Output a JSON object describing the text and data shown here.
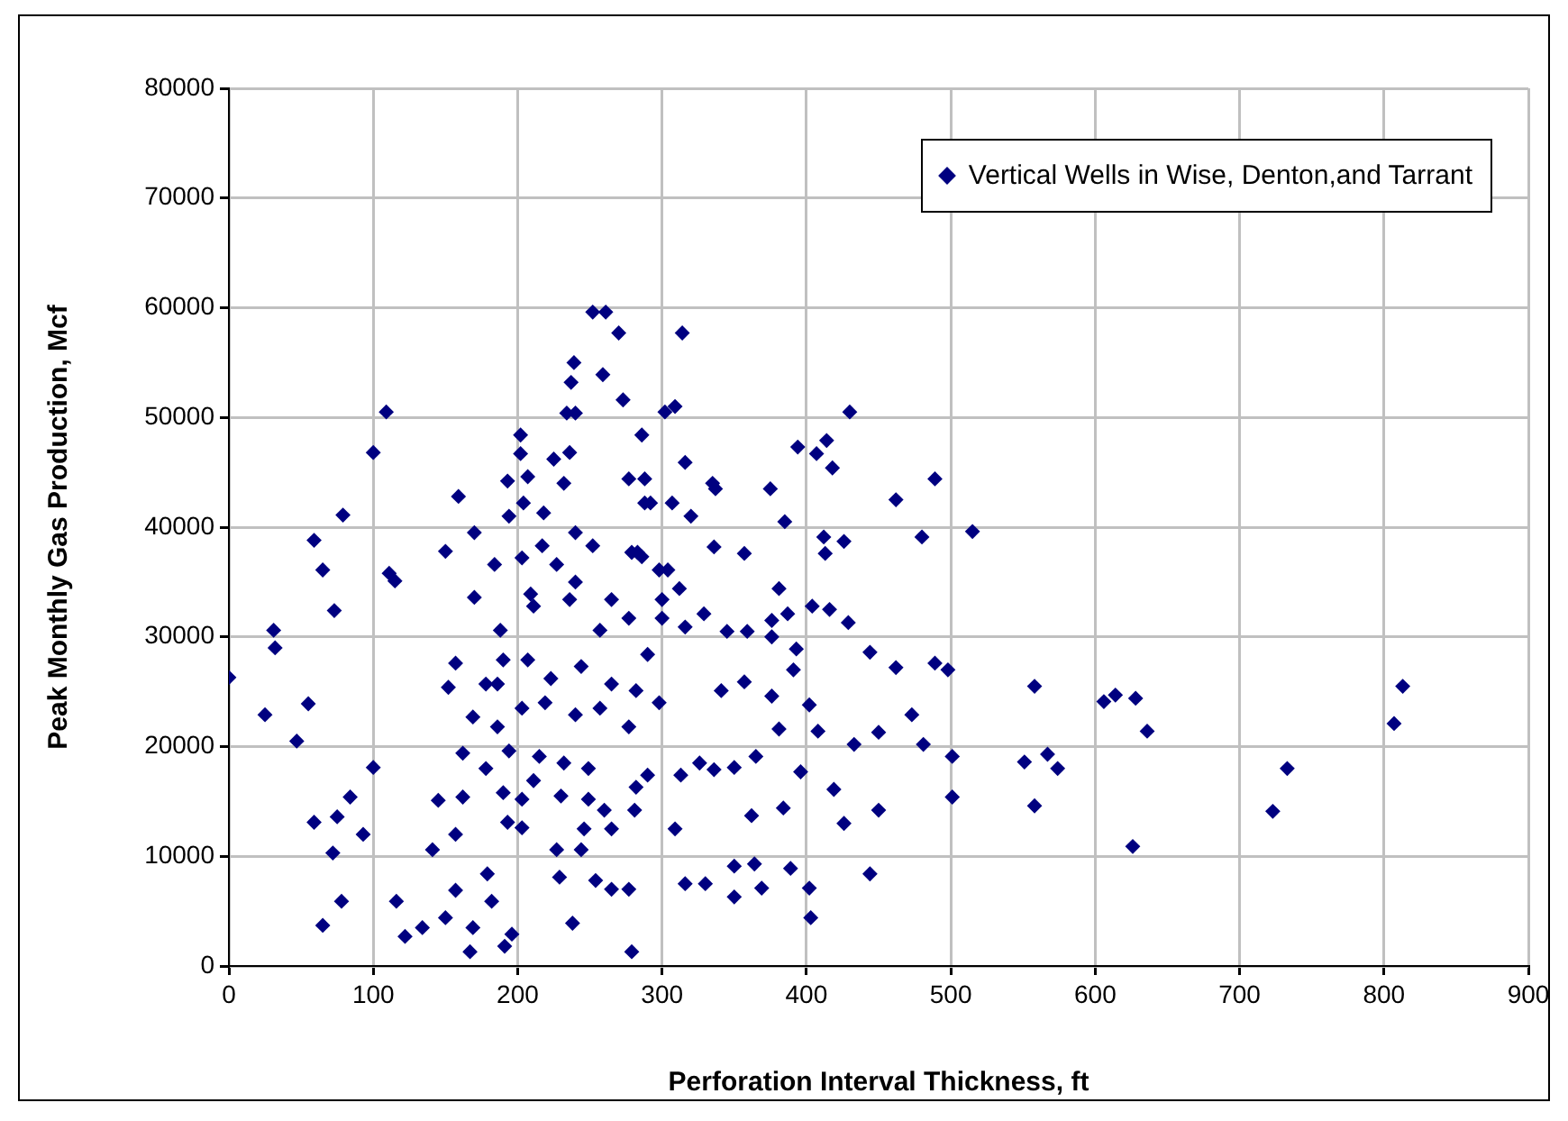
{
  "chart_data": {
    "type": "scatter",
    "xlabel": "Perforation Interval Thickness, ft",
    "ylabel": "Peak Monthly Gas Production, Mcf",
    "xlim": [
      0,
      900
    ],
    "xticks": [
      0,
      100,
      200,
      300,
      400,
      500,
      600,
      700,
      800,
      900
    ],
    "ylim": [
      0,
      80000
    ],
    "yticks": [
      0,
      10000,
      20000,
      30000,
      40000,
      50000,
      60000,
      70000,
      80000
    ],
    "grid": true,
    "legend": "top right",
    "marker": "diamond",
    "series": [
      {
        "name": "Vertical Wells in Wise, Denton,and Tarrant",
        "color": "#000080",
        "x": [
          0,
          25,
          31,
          32,
          47,
          55,
          59,
          65,
          73,
          79,
          59,
          65,
          72,
          75,
          78,
          84,
          93,
          100,
          100,
          109,
          111,
          115,
          116,
          122,
          134,
          141,
          145,
          150,
          150,
          152,
          157,
          159,
          157,
          157,
          162,
          162,
          167,
          169,
          170,
          169,
          170,
          179,
          182,
          184,
          186,
          188,
          191,
          193,
          193,
          196,
          194,
          202,
          202,
          203,
          207,
          204,
          209,
          211,
          218,
          225,
          227,
          229,
          232,
          236,
          238,
          234,
          240,
          237,
          239,
          240,
          252,
          261,
          259,
          270,
          273,
          254,
          265,
          277,
          279,
          244,
          246,
          281,
          286,
          277,
          288,
          288,
          279,
          286,
          203,
          217,
          227,
          240,
          252,
          265,
          211,
          236,
          257,
          277,
          290,
          190,
          207,
          223,
          244,
          265,
          282,
          178,
          186,
          203,
          219,
          240,
          257,
          277,
          194,
          215,
          232,
          249,
          178,
          190,
          203,
          230,
          249,
          260,
          265,
          282,
          290,
          298,
          300,
          298,
          314,
          302,
          309,
          316,
          292,
          307,
          320,
          335,
          337,
          375,
          385,
          394,
          407,
          414,
          418,
          430,
          462,
          489,
          515,
          480,
          412,
          426,
          413,
          336,
          357,
          381,
          387,
          404,
          416,
          429,
          376,
          376,
          345,
          359,
          329,
          316,
          300,
          304,
          312,
          283,
          444,
          462,
          489,
          498,
          393,
          391,
          357,
          341,
          376,
          402,
          473,
          450,
          408,
          433,
          481,
          501,
          381,
          365,
          350,
          336,
          326,
          313,
          396,
          419,
          501,
          384,
          362,
          426,
          450,
          309,
          350,
          364,
          389,
          316,
          330,
          350,
          369,
          402,
          444,
          403,
          558,
          551,
          567,
          574,
          558,
          606,
          614,
          628,
          636,
          626,
          733,
          723,
          807,
          813
        ],
        "values": [
          26300,
          22900,
          30600,
          29000,
          20500,
          23900,
          38800,
          36100,
          32400,
          41100,
          13100,
          3700,
          10300,
          13600,
          5900,
          15400,
          12000,
          46800,
          18100,
          50500,
          35800,
          35100,
          5900,
          2700,
          3500,
          10600,
          15100,
          37800,
          4400,
          25400,
          27600,
          42800,
          6900,
          12000,
          19400,
          15400,
          1300,
          3500,
          39500,
          22700,
          33600,
          8400,
          5900,
          36600,
          25700,
          30600,
          1800,
          13100,
          44200,
          2900,
          41000,
          48400,
          46700,
          12600,
          44600,
          42200,
          33900,
          16900,
          41300,
          46200,
          10600,
          8100,
          44000,
          46800,
          3900,
          50400,
          50400,
          53200,
          55000,
          39500,
          59600,
          59600,
          53900,
          57700,
          51600,
          7800,
          7000,
          7000,
          1300,
          10600,
          12500,
          14200,
          48400,
          44400,
          44400,
          42200,
          37700,
          37300,
          37200,
          38300,
          36600,
          35000,
          38300,
          33400,
          32800,
          33400,
          30600,
          31700,
          28400,
          27900,
          27900,
          26200,
          27300,
          25700,
          25100,
          25700,
          21800,
          23500,
          24000,
          22900,
          23500,
          21800,
          19600,
          19100,
          18500,
          18000,
          18000,
          15800,
          15200,
          15500,
          15200,
          14200,
          12500,
          16300,
          17400,
          24000,
          33400,
          36100,
          57700,
          50500,
          51000,
          45900,
          42200,
          42200,
          41000,
          44000,
          43500,
          43500,
          40500,
          47300,
          46700,
          47900,
          45400,
          50500,
          42500,
          44400,
          39600,
          39100,
          39100,
          38700,
          37600,
          38200,
          37600,
          34400,
          32100,
          32800,
          32500,
          31300,
          31500,
          30000,
          30500,
          30500,
          32100,
          30900,
          31700,
          36100,
          34400,
          37700,
          28600,
          27200,
          27600,
          27000,
          28900,
          27000,
          25900,
          25100,
          24600,
          23800,
          22900,
          21300,
          21400,
          20200,
          20200,
          19100,
          21600,
          19100,
          18100,
          17900,
          18500,
          17400,
          17700,
          16100,
          15400,
          14400,
          13700,
          13000,
          14200,
          12500,
          9100,
          9300,
          8900,
          7500,
          7500,
          6300,
          7100,
          7100,
          8400,
          4400,
          25500,
          18600,
          19300,
          18000,
          14600,
          24100,
          24700,
          24400,
          21400,
          10900,
          18000,
          14100,
          22100,
          25500
        ]
      }
    ]
  }
}
